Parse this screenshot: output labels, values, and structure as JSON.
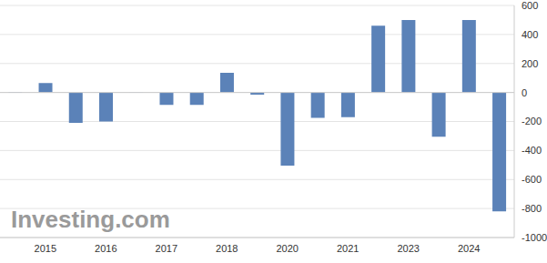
{
  "chart_data": {
    "type": "bar",
    "annotation": "Investing.com",
    "categories": [
      null,
      "2015",
      null,
      "2016",
      null,
      "2017",
      null,
      "2018",
      null,
      "2020",
      null,
      "2021",
      null,
      "2023",
      null,
      "2024",
      null
    ],
    "values": [
      3,
      65,
      -210,
      -200,
      -3,
      -85,
      -85,
      135,
      -15,
      -505,
      -175,
      -170,
      460,
      500,
      -305,
      500,
      -820
    ],
    "color": "#5b82b8",
    "ylim": [
      -1000,
      600
    ],
    "yticks": [
      -1000,
      -800,
      -600,
      -400,
      -200,
      0,
      200,
      400,
      600
    ],
    "grid": true
  }
}
